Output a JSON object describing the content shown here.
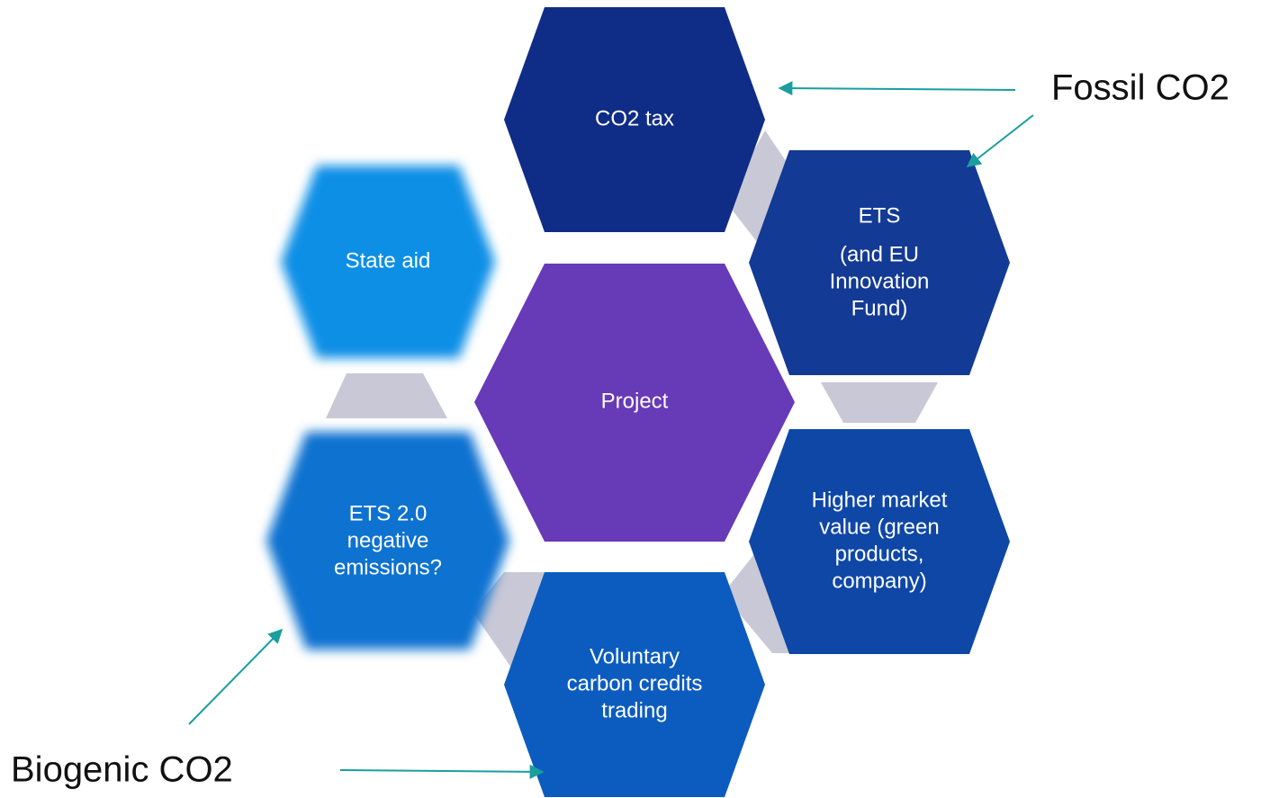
{
  "nodes": [
    {
      "label": [
        "CO2 tax"
      ]
    },
    {
      "label": [
        "ETS",
        "(and EU",
        "Innovation",
        "Fund)"
      ]
    },
    {
      "label": [
        "Higher market",
        "value (green",
        "products,",
        "company)"
      ]
    },
    {
      "label": [
        "Voluntary",
        "carbon credits",
        "trading"
      ]
    },
    {
      "label": [
        "ETS 2.0",
        "negative",
        "emissions?"
      ]
    },
    {
      "label": [
        "State aid"
      ]
    },
    {
      "label": [
        "Project"
      ]
    }
  ],
  "annotations": [
    "Fossil CO2",
    "Biogenic CO2"
  ]
}
